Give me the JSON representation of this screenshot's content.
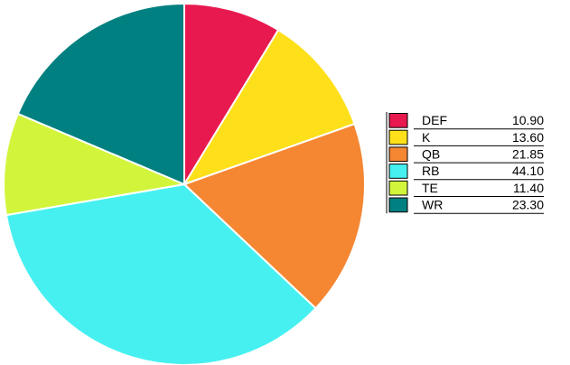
{
  "chart_data": {
    "type": "pie",
    "categories": [
      "DEF",
      "K",
      "QB",
      "RB",
      "TE",
      "WR"
    ],
    "values": [
      10.9,
      13.6,
      21.85,
      44.1,
      11.4,
      23.3
    ],
    "value_labels": [
      "10.90",
      "13.60",
      "21.85",
      "44.10",
      "11.40",
      "23.30"
    ],
    "colors": [
      "#e8194f",
      "#fde01a",
      "#f58632",
      "#46f0f0",
      "#d2f53c",
      "#008080"
    ]
  }
}
